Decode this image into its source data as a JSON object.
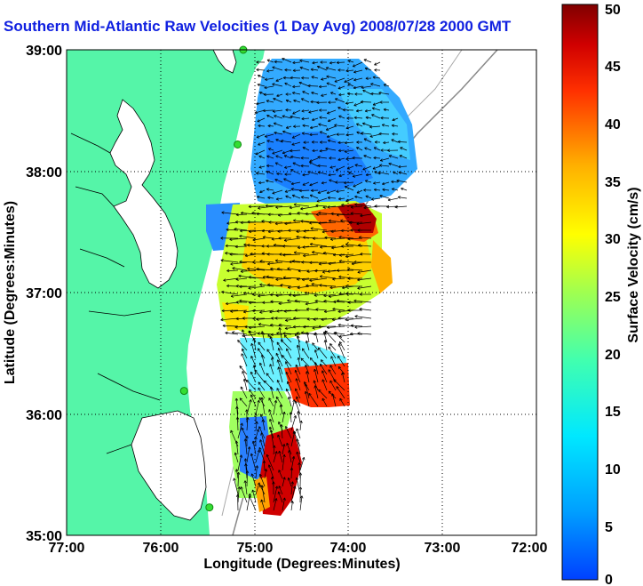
{
  "title": "Southern Mid-Atlantic Raw Velocities (1 Day Avg) 2008/07/28 2000 GMT",
  "map": {
    "xlabel": "Longitude (Degrees:Minutes)",
    "ylabel": "Latitude (Degrees:Minutes)",
    "lon_range": [
      -77,
      -72
    ],
    "lat_range": [
      35,
      39
    ],
    "x_ticks": [
      "77:00",
      "76:00",
      "75:00",
      "74:00",
      "73:00",
      "72:00"
    ],
    "y_ticks": [
      "35:00",
      "36:00",
      "37:00",
      "38:00",
      "39:00"
    ],
    "grid": "dotted",
    "land_color": "#55f5a8",
    "water_color": "#ffffff",
    "arrow_color": "#000000",
    "station_color": "#33dd33"
  },
  "colorbar": {
    "label": "Surface Velocity (cm/s)",
    "min": 0,
    "max": 50,
    "ticks": [
      "0",
      "5",
      "10",
      "15",
      "20",
      "25",
      "30",
      "35",
      "40",
      "45",
      "50"
    ],
    "colormap": "jet"
  },
  "stations": [
    {
      "lon": -75.12,
      "lat": 39.0
    },
    {
      "lon": -75.18,
      "lat": 38.22
    },
    {
      "lon": -75.75,
      "lat": 36.19
    },
    {
      "lon": -75.48,
      "lat": 35.23
    }
  ],
  "chart_data": {
    "type": "heatmap",
    "title": "Southern Mid-Atlantic Raw Velocities (1 Day Avg) 2008/07/28 2000 GMT",
    "xlabel": "Longitude (Degrees:Minutes)",
    "ylabel": "Latitude (Degrees:Minutes)",
    "xlim": [
      -77,
      -72
    ],
    "ylim": [
      35,
      39
    ],
    "zlabel": "Surface Velocity (cm/s)",
    "zlim": [
      0,
      50
    ],
    "regions": [
      {
        "name": "",
        "lon": -74.6,
        "lat": 38.6,
        "speed": 8
      },
      {
        "name": "",
        "lon": -74.2,
        "lat": 38.0,
        "speed": 6
      },
      {
        "name": "",
        "lon": -74.0,
        "lat": 37.6,
        "speed": 45
      },
      {
        "name": "",
        "lon": -74.6,
        "lat": 37.3,
        "speed": 27
      },
      {
        "name": "",
        "lon": -74.7,
        "lat": 36.9,
        "speed": 22
      },
      {
        "name": "",
        "lon": -74.5,
        "lat": 36.1,
        "speed": 40
      },
      {
        "name": "",
        "lon": -74.9,
        "lat": 35.5,
        "speed": 12
      },
      {
        "name": "",
        "lon": -74.85,
        "lat": 35.3,
        "speed": 48
      }
    ]
  }
}
